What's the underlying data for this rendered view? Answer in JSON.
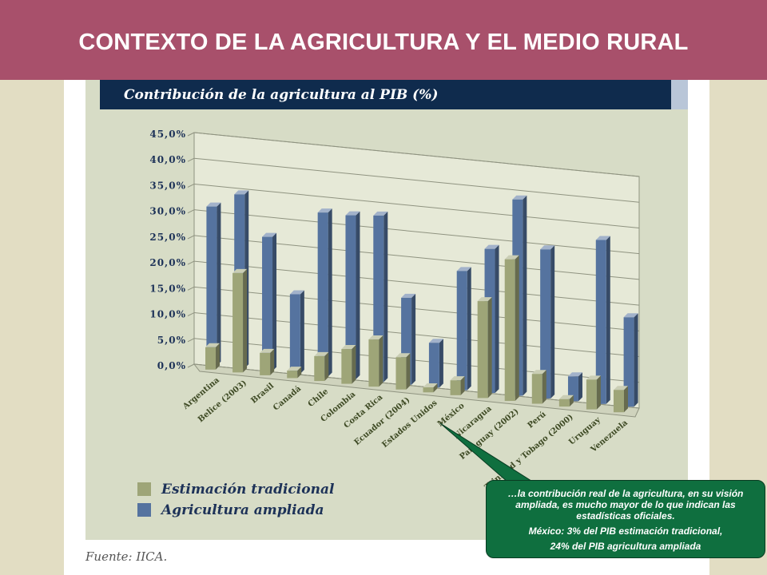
{
  "header": {
    "title": "CONTEXTO DE LA AGRICULTURA Y EL MEDIO RURAL"
  },
  "colors": {
    "header_bg": "#a8506b",
    "traditional_series": "#9ea578",
    "expanded_series": "#55739f",
    "callout_bg": "#0f6f3f"
  },
  "callout": {
    "line1": "…la contribución real de la agricultura, en su visión ampliada, es mucho mayor de lo que indican las estadísticas oficiales.",
    "line2": "México: 3% del PIB estimación tradicional,",
    "line3": "24% del PIB agricultura ampliada"
  },
  "source": "Fuente: IICA.",
  "chart_data": {
    "type": "bar",
    "title": "Contribución de la agricultura al PIB (%)",
    "categories": [
      "Argentina",
      "Belice (2003)",
      "Brasil",
      "Canadá",
      "Chile",
      "Colombia",
      "Costa Rica",
      "Ecuador (2004)",
      "Estados Unidos",
      "México",
      "Nicaragua",
      "Paraguay (2002)",
      "Perú",
      "Trinidad y Tobago (2000)",
      "Uruguay",
      "Venezuela"
    ],
    "series": [
      {
        "name": "Estimación tradicional",
        "values": [
          4.5,
          20.0,
          4.5,
          1.5,
          5.0,
          7.0,
          9.5,
          6.5,
          1.0,
          3.0,
          19.5,
          28.5,
          6.0,
          1.5,
          6.0,
          4.5
        ]
      },
      {
        "name": "Agricultura ampliada",
        "values": [
          32.0,
          35.0,
          27.0,
          16.0,
          33.0,
          33.0,
          33.5,
          17.5,
          9.0,
          24.0,
          29.0,
          39.5,
          30.0,
          5.0,
          33.0,
          18.0
        ]
      }
    ],
    "yticks": [
      "0,0%",
      "5,0%",
      "10,0%",
      "15,0%",
      "20,0%",
      "25,0%",
      "30,0%",
      "35,0%",
      "40,0%",
      "45,0%"
    ],
    "ylim": [
      0,
      45
    ],
    "grid": true,
    "legend_position": "bottom-left",
    "style": "3d-grouped-bars"
  }
}
